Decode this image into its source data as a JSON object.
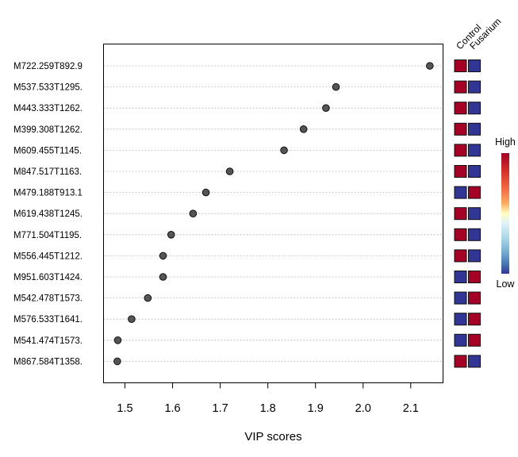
{
  "chart_data": {
    "type": "scatter",
    "xlabel": "VIP scores",
    "xlim": [
      1.455,
      2.17
    ],
    "xticks": [
      "1.5",
      "1.6",
      "1.7",
      "1.8",
      "1.9",
      "2.0",
      "2.1"
    ],
    "features": [
      {
        "name": "M722.259T892.9",
        "vip": 2.14,
        "control": "High",
        "fusarium": "Low"
      },
      {
        "name": "M537.533T1295.",
        "vip": 1.943,
        "control": "High",
        "fusarium": "Low"
      },
      {
        "name": "M443.333T1262.",
        "vip": 1.922,
        "control": "High",
        "fusarium": "Low"
      },
      {
        "name": "M399.308T1262.",
        "vip": 1.875,
        "control": "High",
        "fusarium": "Low"
      },
      {
        "name": "M609.455T1145.",
        "vip": 1.834,
        "control": "High",
        "fusarium": "Low"
      },
      {
        "name": "M847.517T1163.",
        "vip": 1.72,
        "control": "High",
        "fusarium": "Low"
      },
      {
        "name": "M479.188T913.1",
        "vip": 1.67,
        "control": "Low",
        "fusarium": "High"
      },
      {
        "name": "M619.438T1245.",
        "vip": 1.643,
        "control": "High",
        "fusarium": "Low"
      },
      {
        "name": "M771.504T1195.",
        "vip": 1.597,
        "control": "High",
        "fusarium": "Low"
      },
      {
        "name": "M556.445T1212.",
        "vip": 1.58,
        "control": "High",
        "fusarium": "Low"
      },
      {
        "name": "M951.603T1424.",
        "vip": 1.58,
        "control": "Low",
        "fusarium": "High"
      },
      {
        "name": "M542.478T1573.",
        "vip": 1.548,
        "control": "Low",
        "fusarium": "High"
      },
      {
        "name": "M576.533T1641.",
        "vip": 1.514,
        "control": "Low",
        "fusarium": "High"
      },
      {
        "name": "M541.474T1573.",
        "vip": 1.485,
        "control": "Low",
        "fusarium": "High"
      },
      {
        "name": "M867.584T1358.",
        "vip": 1.484,
        "control": "High",
        "fusarium": "Low"
      }
    ],
    "groups": [
      "Control",
      "Fusarium"
    ],
    "color_scale": {
      "high_label": "High",
      "low_label": "Low",
      "high_color": "#a50026",
      "low_color": "#313695"
    },
    "grid": "horizontal dotted",
    "point_color": "#555555"
  }
}
